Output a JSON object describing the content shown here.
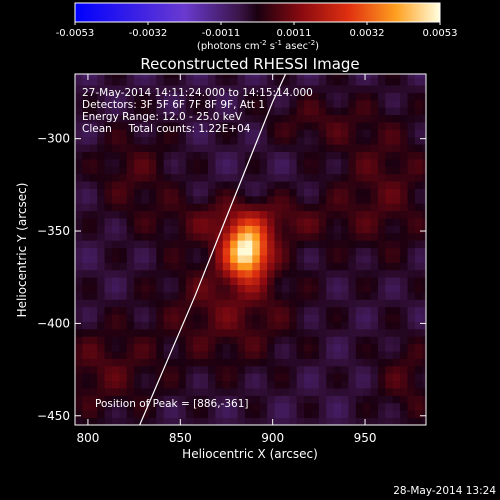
{
  "chart_data": {
    "type": "heatmap",
    "title": "Reconstructed RHESSI Image",
    "xlabel": "Heliocentric X (arcsec)",
    "ylabel": "Heliocentric Y (arcsec)",
    "xlim": [
      793,
      983
    ],
    "ylim": [
      -455,
      -265
    ],
    "x_ticks": [
      800,
      850,
      900,
      950
    ],
    "y_ticks": [
      -300,
      -350,
      -400,
      -450
    ],
    "colorbar": {
      "range": [
        -0.0053,
        0.0053
      ],
      "ticks": [
        "-0.0053",
        "-0.0032",
        "-0.0011",
        "0.0011",
        "0.0032",
        "0.0053"
      ],
      "label": "(photons cm",
      "label_sup1": "-2",
      "label_mid": " s",
      "label_sup2": "-1",
      "label_end": " asec",
      "label_sup3": "-2",
      "label_close": ")"
    },
    "annotations": [
      "27-May-2014 14:11:24.000 to 14:15:14.000",
      "Detectors: 3F 5F 6F 7F 8F 9F, Att 1",
      "Energy Range: 12.0 - 25.0 keV",
      "Clean     Total counts: 1.22E+04"
    ],
    "peak_label": "Position of Peak = [886,-361]",
    "peak": [
      886,
      -361
    ],
    "limb": [
      [
        828,
        -455
      ],
      [
        843,
        -420
      ],
      [
        858,
        -385
      ],
      [
        872,
        -350
      ],
      [
        886,
        -315
      ],
      [
        900,
        -280
      ],
      [
        907,
        -265
      ]
    ],
    "limb_color": "#ffffff",
    "sources": [
      {
        "x": 886,
        "y": -361,
        "sx": 8,
        "sy": 10,
        "amp": 0.0053
      },
      {
        "x": 888,
        "y": -344,
        "sx": 30,
        "sy": 9,
        "amp": 0.0012
      },
      {
        "x": 877,
        "y": -390,
        "sx": 26,
        "sy": 24,
        "amp": 0.0011
      },
      {
        "x": 825,
        "y": -318,
        "sx": 16,
        "sy": 18,
        "amp": 0.0008
      },
      {
        "x": 960,
        "y": -325,
        "sx": 20,
        "sy": 28,
        "amp": 0.0009
      },
      {
        "x": 808,
        "y": -425,
        "sx": 22,
        "sy": 18,
        "amp": 0.0009
      },
      {
        "x": 972,
        "y": -430,
        "sx": 12,
        "sy": 16,
        "amp": 0.0008
      },
      {
        "x": 922,
        "y": -290,
        "sx": 20,
        "sy": 10,
        "amp": 0.0007
      }
    ]
  },
  "footer": {
    "timestamp": "28-May-2014 13:24"
  }
}
